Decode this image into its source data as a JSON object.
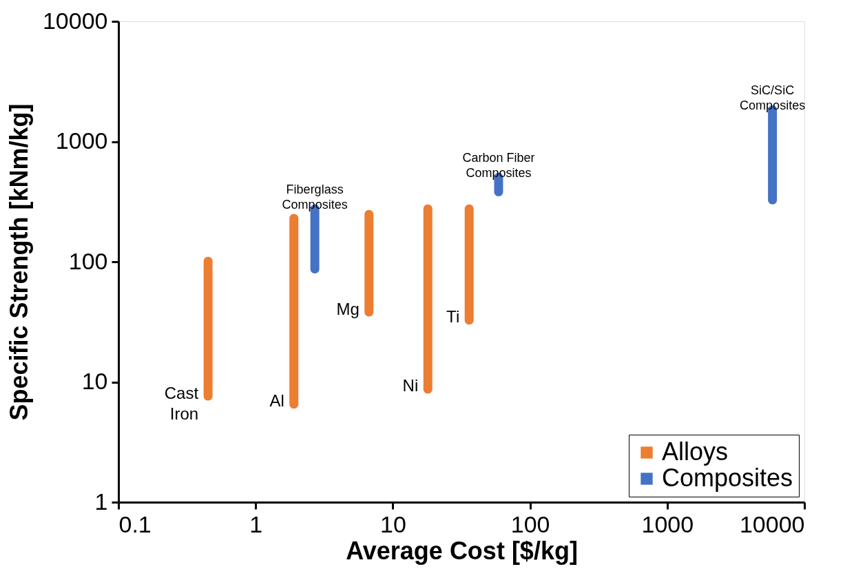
{
  "chart_data": {
    "type": "bar",
    "xlabel": "Average Cost [$/kg]",
    "ylabel": "Specific Strength [kNm/kg]",
    "log": "xy",
    "xlim": [
      0.1,
      10000
    ],
    "xticks": [
      0.1,
      1,
      10,
      100,
      1000,
      10000
    ],
    "ylim": [
      1,
      10000
    ],
    "yticks": [
      1,
      10,
      100,
      1000,
      10000
    ],
    "grid": false,
    "legend": "bottom right",
    "series": [
      {
        "name": "Alloys",
        "color": "#ed7d31",
        "x": [
          0.45,
          1.9,
          6.7,
          18,
          36
        ],
        "base": [
          7,
          6,
          35,
          8,
          30
        ],
        "values": [
          103,
          244,
          235,
          292,
          270
        ]
      },
      {
        "name": "Composites",
        "color": "#4472c4",
        "x": [
          2.7,
          59,
          5850
        ],
        "base": [
          80,
          350,
          300
        ],
        "values": [
          220,
          200,
          1700
        ]
      }
    ],
    "annotations": [
      {
        "text": "Cast\nIron",
        "x": 0.45,
        "y": 7
      },
      {
        "text": "Al",
        "x": 1.9,
        "y": 6
      },
      {
        "text": "Mg",
        "x": 6.7,
        "y": 35
      },
      {
        "text": "Ni",
        "x": 18,
        "y": 8
      },
      {
        "text": "Ti",
        "x": 36,
        "y": 30
      },
      {
        "text": "Fiberglass\nComposites",
        "x": 2.7,
        "y": 300
      },
      {
        "text": "Carbon Fiber\nComposites",
        "x": 59,
        "y": 550
      },
      {
        "text": "SiC/SiC\nComposites",
        "x": 5850,
        "y": 2000
      }
    ]
  }
}
